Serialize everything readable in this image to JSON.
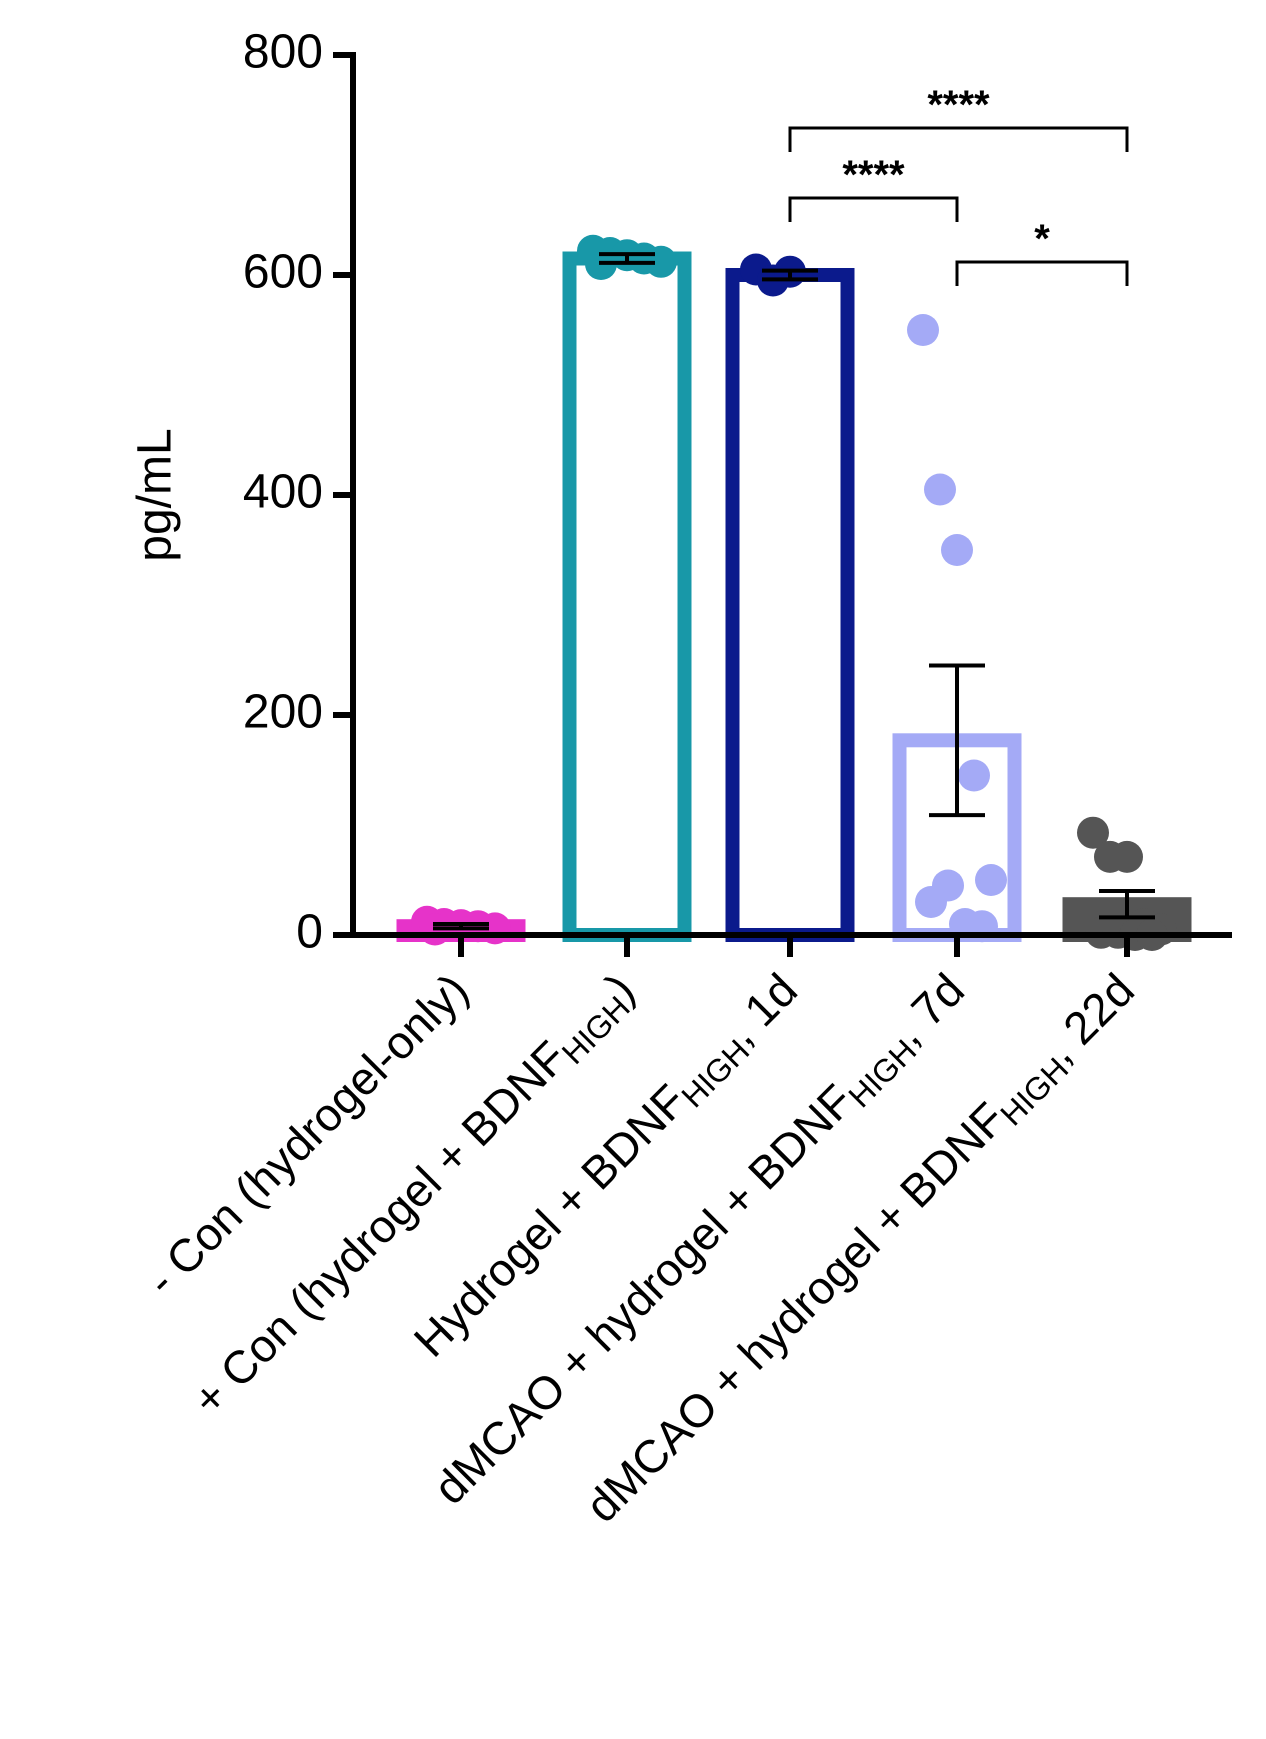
{
  "chart_data": {
    "type": "bar",
    "ylabel": "pg/mL",
    "categories": [
      [
        "- Con (hydrogel-only)"
      ],
      [
        "+ Con (hydrogel + BDNF",
        "HIGH",
        ")"
      ],
      [
        "Hydrogel + BDNF",
        "HIGH",
        ", 1d"
      ],
      [
        "dMCAO + hydrogel + BDNF",
        "HIGH",
        ", 7d"
      ],
      [
        "dMCAO + hydrogel + BDNF",
        "HIGH",
        ", 22d"
      ]
    ],
    "colors": [
      "#e633c9",
      "#1898a8",
      "#0b1a8c",
      "#a4aaf6",
      "#555555"
    ],
    "filled": [
      false,
      false,
      false,
      false,
      true
    ],
    "values": [
      8,
      615,
      600,
      177,
      28
    ],
    "errors": [
      2,
      4,
      4,
      68,
      12
    ],
    "points": [
      [
        12,
        10,
        9,
        8,
        6,
        5
      ],
      [
        622,
        620,
        618,
        615,
        612,
        610
      ],
      [
        605,
        595,
        603
      ],
      [
        550,
        405,
        350,
        145,
        50,
        30,
        45,
        10,
        8
      ],
      [
        93,
        71,
        71,
        10,
        5,
        2,
        2,
        0,
        0
      ]
    ],
    "ylim": [
      0,
      800
    ],
    "yticks": [
      0,
      200,
      400,
      600,
      800
    ],
    "annotations": [
      {
        "groups": [
          2,
          4
        ],
        "label": "****"
      },
      {
        "groups": [
          2,
          3
        ],
        "label": "****"
      },
      {
        "groups": [
          3,
          4
        ],
        "label": "*"
      }
    ]
  }
}
